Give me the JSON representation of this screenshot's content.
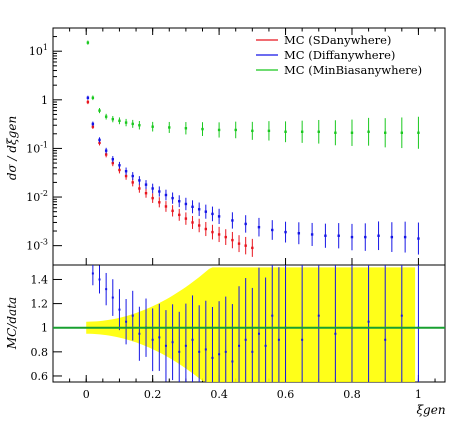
{
  "chart_data": [
    {
      "type": "scatter",
      "panel": "top",
      "ylabel": "dσ / dξgen",
      "yscale": "log",
      "ylim": [
        0.0004,
        30
      ],
      "xlim": [
        -0.1,
        1.08
      ],
      "ytick_labels": [
        "10^-3",
        "10^-2",
        "10^-1",
        "1",
        "10^1"
      ],
      "ytick_values": [
        0.001,
        0.01,
        0.1,
        1,
        10
      ],
      "legend_position": "top-right",
      "series": [
        {
          "name": "MC (SDanywhere)",
          "color": "#e8141e",
          "x": [
            0.005,
            0.02,
            0.04,
            0.06,
            0.08,
            0.1,
            0.12,
            0.14,
            0.16,
            0.18,
            0.2,
            0.22,
            0.24,
            0.26,
            0.28,
            0.3,
            0.32,
            0.34,
            0.36,
            0.38,
            0.4,
            0.42,
            0.44,
            0.46,
            0.48,
            0.5
          ],
          "y": [
            0.9,
            0.28,
            0.13,
            0.075,
            0.05,
            0.036,
            0.027,
            0.02,
            0.015,
            0.012,
            0.0095,
            0.0078,
            0.0064,
            0.0052,
            0.0043,
            0.0036,
            0.003,
            0.0026,
            0.0022,
            0.0019,
            0.0017,
            0.0015,
            0.0013,
            0.0011,
            0.001,
            0.0009
          ]
        },
        {
          "name": "MC (Diffanywhere)",
          "color": "#1414e6",
          "x": [
            0.005,
            0.02,
            0.04,
            0.06,
            0.08,
            0.1,
            0.12,
            0.14,
            0.16,
            0.18,
            0.2,
            0.22,
            0.24,
            0.26,
            0.28,
            0.3,
            0.32,
            0.34,
            0.36,
            0.38,
            0.4,
            0.44,
            0.48,
            0.52,
            0.56,
            0.6,
            0.64,
            0.68,
            0.72,
            0.76,
            0.8,
            0.84,
            0.88,
            0.92,
            0.96,
            1.0
          ],
          "y": [
            1.1,
            0.32,
            0.15,
            0.09,
            0.06,
            0.045,
            0.034,
            0.027,
            0.022,
            0.018,
            0.015,
            0.013,
            0.011,
            0.0095,
            0.0082,
            0.0072,
            0.0063,
            0.0056,
            0.005,
            0.0045,
            0.004,
            0.0033,
            0.0028,
            0.0024,
            0.0021,
            0.0019,
            0.0018,
            0.0017,
            0.0016,
            0.0016,
            0.0015,
            0.0015,
            0.0016,
            0.0015,
            0.0015,
            0.0014
          ]
        },
        {
          "name": "MC (MinBiasanywhere)",
          "color": "#19c81e",
          "x": [
            0.005,
            0.02,
            0.04,
            0.06,
            0.08,
            0.1,
            0.12,
            0.14,
            0.16,
            0.2,
            0.25,
            0.3,
            0.35,
            0.4,
            0.45,
            0.5,
            0.55,
            0.6,
            0.65,
            0.7,
            0.75,
            0.8,
            0.85,
            0.9,
            0.95,
            1.0
          ],
          "y": [
            15,
            1.1,
            0.6,
            0.45,
            0.4,
            0.37,
            0.34,
            0.32,
            0.3,
            0.28,
            0.27,
            0.26,
            0.25,
            0.24,
            0.24,
            0.23,
            0.23,
            0.22,
            0.22,
            0.22,
            0.21,
            0.21,
            0.22,
            0.21,
            0.21,
            0.21
          ]
        }
      ]
    },
    {
      "type": "scatter",
      "panel": "bottom",
      "ylabel": "MC/data",
      "xlabel": "ξgen",
      "xlim": [
        -0.1,
        1.08
      ],
      "ylim": [
        0.55,
        1.52
      ],
      "ytick_values": [
        0.6,
        0.8,
        1,
        1.2,
        1.4
      ],
      "xtick_values": [
        0,
        0.2,
        0.4,
        0.6,
        0.8,
        1
      ],
      "reference_line": 1,
      "reference_color": "#18a030",
      "band_color": "#ffff00",
      "series": [
        {
          "color": "#1414e6",
          "x": [
            0.02,
            0.04,
            0.06,
            0.08,
            0.1,
            0.12,
            0.14,
            0.16,
            0.18,
            0.2,
            0.22,
            0.24,
            0.26,
            0.28,
            0.3,
            0.32,
            0.34,
            0.36,
            0.38,
            0.4,
            0.42,
            0.44,
            0.46,
            0.48,
            0.5,
            0.52,
            0.54,
            0.56,
            0.58,
            0.6,
            0.65,
            0.7,
            0.75,
            0.8,
            0.85,
            0.9,
            0.95,
            1.0
          ],
          "y": [
            1.45,
            1.4,
            1.32,
            1.25,
            1.15,
            1.05,
            1.1,
            0.95,
            1.0,
            0.9,
            0.92,
            0.85,
            0.88,
            0.8,
            0.85,
            0.9,
            0.8,
            0.82,
            0.75,
            0.78,
            0.8,
            0.72,
            0.85,
            0.9,
            0.8,
            0.95,
            0.85,
            1.1,
            0.9,
            1.0,
            0.9,
            1.1,
            0.95,
            1.0,
            1.05,
            0.9,
            1.1,
            1.0
          ]
        }
      ]
    }
  ]
}
